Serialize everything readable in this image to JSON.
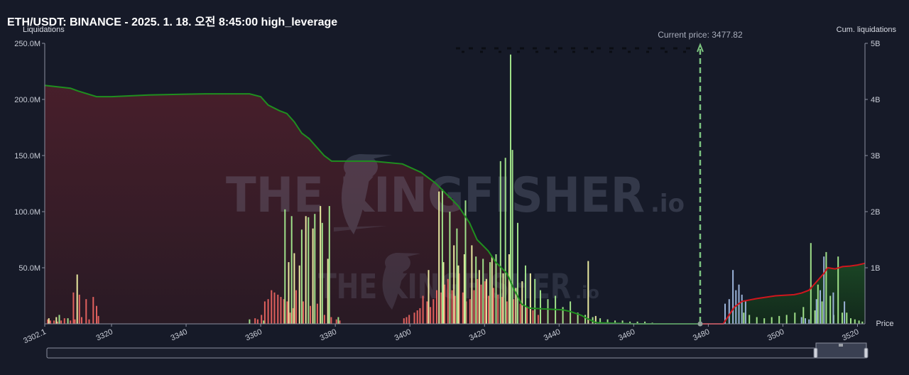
{
  "title": "ETH/USDT: BINANCE - 2025. 1. 18. 오전 8:45:00 high_leverage",
  "watermark": {
    "brand": "THE KINGFISHER",
    "suffix": ".IO",
    "suffix_small": ".io"
  },
  "colors": {
    "background": "#161a28",
    "cum_short_line": "#1f8f1f",
    "cum_long_line": "#d0161d",
    "short_area": "#3a1d27",
    "long_area": "#16351f",
    "bar_yellow": "#e8e9a0",
    "bar_red": "#e0605d",
    "bar_blue": "#9ab2d8",
    "bar_green": "#9fe089",
    "current_price": "#7cc47f"
  },
  "chart_data": {
    "type": "bar",
    "title": "ETH/USDT: BINANCE - 2025. 1. 18. 오전 8:45:00 high_leverage",
    "xlabel": "Price",
    "ylabel": "Liquidations",
    "y2label": "Cum. liquidations",
    "xlim": [
      3302.1,
      3522
    ],
    "ylim": [
      0,
      250
    ],
    "y2lim": [
      0,
      5
    ],
    "x_ticks": [
      "3302.1",
      "3320",
      "3340",
      "3360",
      "3380",
      "3400",
      "3420",
      "3440",
      "3460",
      "3480",
      "3500",
      "3520"
    ],
    "x_tick_values": [
      3302.1,
      3320,
      3340,
      3360,
      3380,
      3400,
      3420,
      3440,
      3460,
      3480,
      3500,
      3520
    ],
    "y_ticks": [
      "50.0M",
      "100.0M",
      "150.0M",
      "200.0M",
      "250.0M"
    ],
    "y_tick_values": [
      50,
      100,
      150,
      200,
      250
    ],
    "y2_ticks": [
      "1B",
      "2B",
      "3B",
      "4B",
      "5B"
    ],
    "y2_tick_values": [
      1,
      2,
      3,
      4,
      5
    ],
    "current_price_label": "Current price: 3477.82",
    "current_price": 3477.82,
    "cum_short_liquidations": {
      "x": [
        3302.1,
        3309,
        3311,
        3316,
        3320,
        3330,
        3345,
        3357,
        3360,
        3362,
        3365,
        3367,
        3369,
        3370,
        3371,
        3373,
        3375,
        3377,
        3378,
        3379,
        3380,
        3390,
        3398,
        3403,
        3407,
        3410,
        3413,
        3416,
        3418,
        3421,
        3423,
        3426,
        3428,
        3430,
        3432,
        3441,
        3443,
        3446,
        3448,
        3450,
        3460,
        3477.82
      ],
      "values": [
        4.25,
        4.2,
        4.15,
        4.05,
        4.05,
        4.08,
        4.1,
        4.1,
        4.05,
        3.9,
        3.8,
        3.75,
        3.6,
        3.5,
        3.4,
        3.3,
        3.15,
        3.0,
        2.95,
        2.9,
        2.9,
        2.9,
        2.85,
        2.7,
        2.5,
        2.3,
        2.1,
        1.8,
        1.5,
        1.3,
        1.1,
        0.9,
        0.6,
        0.35,
        0.28,
        0.25,
        0.22,
        0.15,
        0.08,
        0.02,
        0.0,
        0.0
      ]
    },
    "cum_long_liquidations": {
      "x": [
        3477.82,
        3484,
        3485,
        3487,
        3489,
        3493,
        3498,
        3503,
        3505,
        3507,
        3509,
        3511,
        3512,
        3514,
        3516,
        3518,
        3520,
        3522
      ],
      "values": [
        0.0,
        0.0,
        0.1,
        0.3,
        0.4,
        0.45,
        0.5,
        0.52,
        0.55,
        0.6,
        0.75,
        0.9,
        1.0,
        0.98,
        1.02,
        1.03,
        1.05,
        1.08
      ]
    },
    "series": [
      {
        "color": "red",
        "x": [
          3302.9,
          3303.6,
          3304.6,
          3305.5,
          3306.5,
          3307.4,
          3309.0,
          3309.8,
          3310.2,
          3311.4,
          3312.0,
          3313.2,
          3314.0,
          3315.1,
          3316.0,
          3316.5,
          3358.5,
          3359.2,
          3360.2,
          3361.1,
          3362.0,
          3362.9,
          3363.7,
          3364.6,
          3365.4,
          3366.2,
          3367.1,
          3367.9,
          3368.7,
          3369.5,
          3371.4,
          3373.3,
          3375.2,
          3377.1,
          3378.9,
          3380.3,
          3381.2,
          3398.4,
          3399.1,
          3399.8,
          3401.2,
          3402.0,
          3402.7,
          3403.5,
          3404.6,
          3405.5,
          3406.3,
          3407.2,
          3408.4,
          3409.3,
          3410.2,
          3411.3,
          3412.1,
          3413.2,
          3414.2,
          3415.1,
          3416.1,
          3417.2,
          3418.1,
          3419.1,
          3420.1,
          3421.1,
          3422.4,
          3423.6,
          3424.7,
          3426.0,
          3427.8,
          3429.6,
          3431.4,
          3433.0,
          3434.4
        ],
        "values": [
          4,
          3,
          3,
          2,
          3,
          5,
          3,
          28,
          4,
          26,
          6,
          22,
          4,
          24,
          16,
          7,
          5,
          4,
          8,
          20,
          22,
          30,
          28,
          26,
          24,
          22,
          20,
          10,
          14,
          30,
          20,
          16,
          18,
          8,
          6,
          4,
          3,
          5,
          6,
          8,
          10,
          12,
          14,
          25,
          20,
          15,
          22,
          30,
          28,
          35,
          40,
          30,
          25,
          45,
          28,
          20,
          22,
          30,
          40,
          35,
          38,
          25,
          32,
          26,
          24,
          20,
          22,
          18,
          15,
          12,
          8
        ]
      },
      {
        "color": "yellow",
        "x": [
          3303.2,
          3305.2,
          3310.8,
          3367.5,
          3369.0,
          3370.4,
          3372.1,
          3374.0,
          3376.0,
          3378.0,
          3405.0,
          3407.8,
          3409.0,
          3411.8,
          3413.0,
          3414.6,
          3416.6,
          3418.6,
          3420.5,
          3422.0,
          3425.0,
          3426.6,
          3428.4,
          3430.1,
          3432.3,
          3447.8,
          3449.8
        ],
        "values": [
          5,
          6,
          44,
          55,
          63,
          52,
          96,
          85,
          105,
          58,
          48,
          118,
          55,
          70,
          52,
          62,
          70,
          48,
          40,
          60,
          45,
          62,
          32,
          38,
          45,
          56,
          7
        ]
      },
      {
        "color": "green",
        "x": [
          3306.0,
          3308.3,
          3357.0,
          3360.8,
          3366.5,
          3368.3,
          3371.0,
          3372.8,
          3374.5,
          3376.5,
          3378.4,
          3380.8,
          3408.7,
          3410.7,
          3412.6,
          3414.9,
          3417.7,
          3419.6,
          3421.5,
          3423.1,
          3424.3,
          3425.6,
          3427.0,
          3427.5,
          3428.9,
          3431.0,
          3433.5,
          3435.0,
          3437.0,
          3439.0,
          3441.0,
          3443.0,
          3445.0,
          3447.0,
          3449.0,
          3451.0,
          3453.0,
          3455.0,
          3457.0,
          3459.0,
          3461.0,
          3463.0,
          3465.0,
          3489.5,
          3491.0,
          3493.0,
          3495.0,
          3497.0,
          3499.0,
          3501.0,
          3503.2,
          3505.5,
          3507.5,
          3508.6,
          3509.4,
          3510.5,
          3511.6,
          3512.7,
          3513.6,
          3514.8,
          3515.9,
          3517.1,
          3518.2,
          3519.3,
          3520.4,
          3521.3
        ],
        "values": [
          8,
          5,
          4,
          3,
          102,
          96,
          84,
          95,
          98,
          90,
          105,
          6,
          120,
          100,
          85,
          110,
          60,
          58,
          55,
          62,
          145,
          148,
          240,
          155,
          90,
          52,
          40,
          30,
          22,
          25,
          15,
          20,
          10,
          8,
          6,
          5,
          4,
          3,
          3,
          2,
          2,
          2,
          1,
          10,
          8,
          6,
          5,
          6,
          7,
          8,
          10,
          15,
          72,
          12,
          35,
          20,
          64,
          25,
          8,
          60,
          10,
          10,
          5,
          4,
          3,
          2
        ]
      },
      {
        "color": "blue",
        "x": [
          3484.5,
          3485.6,
          3486.6,
          3487.4,
          3488.2,
          3489.0,
          3490.0,
          3505.0,
          3506.0,
          3507.0,
          3509.0,
          3510.0,
          3511.0,
          3513.5,
          3516.5
        ],
        "values": [
          18,
          22,
          48,
          30,
          35,
          26,
          20,
          6,
          5,
          4,
          22,
          30,
          60,
          28,
          20
        ]
      }
    ]
  }
}
